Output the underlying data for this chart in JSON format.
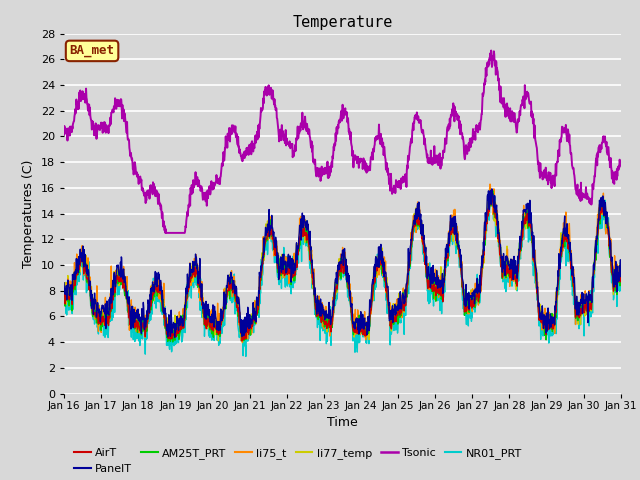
{
  "title": "Temperature",
  "xlabel": "Time",
  "ylabel": "Temperatures (C)",
  "ylim": [
    0,
    28
  ],
  "xlim": [
    0,
    360
  ],
  "bg_color": "#d8d8d8",
  "grid_color": "#ffffff",
  "xtick_labels": [
    "Jan 16",
    "Jan 17",
    "Jan 18",
    "Jan 19",
    "Jan 20",
    "Jan 21",
    "Jan 22",
    "Jan 23",
    "Jan 24",
    "Jan 25",
    "Jan 26",
    "Jan 27",
    "Jan 28",
    "Jan 29",
    "Jan 30",
    "Jan 31"
  ],
  "xtick_positions": [
    0,
    24,
    48,
    72,
    96,
    120,
    144,
    168,
    192,
    216,
    240,
    264,
    288,
    312,
    336,
    360
  ],
  "ytick_labels": [
    "0",
    "2",
    "4",
    "6",
    "8",
    "10",
    "12",
    "14",
    "16",
    "18",
    "20",
    "22",
    "24",
    "26",
    "28"
  ],
  "ytick_positions": [
    0,
    2,
    4,
    6,
    8,
    10,
    12,
    14,
    16,
    18,
    20,
    22,
    24,
    26,
    28
  ],
  "series": {
    "AirT": {
      "color": "#cc0000",
      "lw": 1.0
    },
    "PanelT": {
      "color": "#000099",
      "lw": 1.0
    },
    "AM25T_PRT": {
      "color": "#00cc00",
      "lw": 1.0
    },
    "li75_t": {
      "color": "#ff8800",
      "lw": 1.0
    },
    "li77_temp": {
      "color": "#cccc00",
      "lw": 1.0
    },
    "Tsonic": {
      "color": "#aa00aa",
      "lw": 1.4
    },
    "NR01_PRT": {
      "color": "#00cccc",
      "lw": 1.0
    }
  },
  "annotation_text": "BA_met",
  "annotation_bg": "#ffff99",
  "annotation_border": "#882200",
  "legend_ncol": 6
}
